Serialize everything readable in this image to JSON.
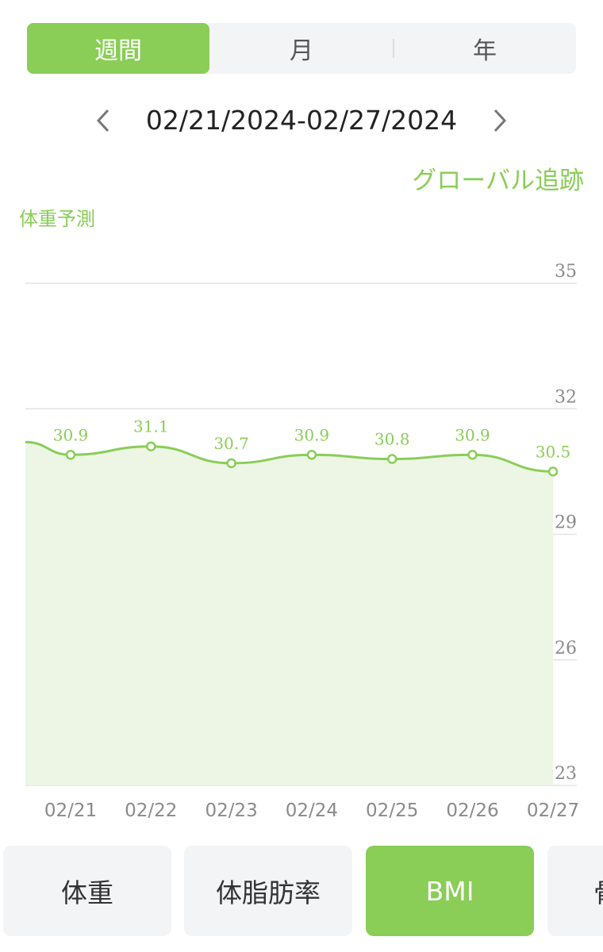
{
  "period_tabs": [
    "週間",
    "月",
    "年"
  ],
  "active_period": "週間",
  "date_range": "02/21/2024-02/27/2024",
  "global_tracking": "グローバル追跡",
  "chart_title": "体重予測",
  "metrics": [
    {
      "label": "体重"
    },
    {
      "label": "体脂肪率"
    },
    {
      "label": "BMI"
    },
    {
      "label": "骨"
    }
  ],
  "active_metric": "BMI",
  "colors": {
    "accent": "#8acd57",
    "fill": "#edf6e5",
    "grid": "#e3e3e3",
    "axis_text": "#8a8a8a"
  },
  "chart_data": {
    "type": "area",
    "x": [
      "02/21",
      "02/22",
      "02/23",
      "02/24",
      "02/25",
      "02/26",
      "02/27"
    ],
    "series": [
      {
        "values": [
          30.9,
          31.1,
          30.7,
          30.9,
          30.8,
          30.9,
          30.5
        ]
      }
    ],
    "y_ticks": [
      35,
      32,
      29,
      26,
      23
    ],
    "ylim": [
      23,
      35
    ],
    "y_axis_position": "right",
    "grid": true,
    "data_labels": true
  }
}
